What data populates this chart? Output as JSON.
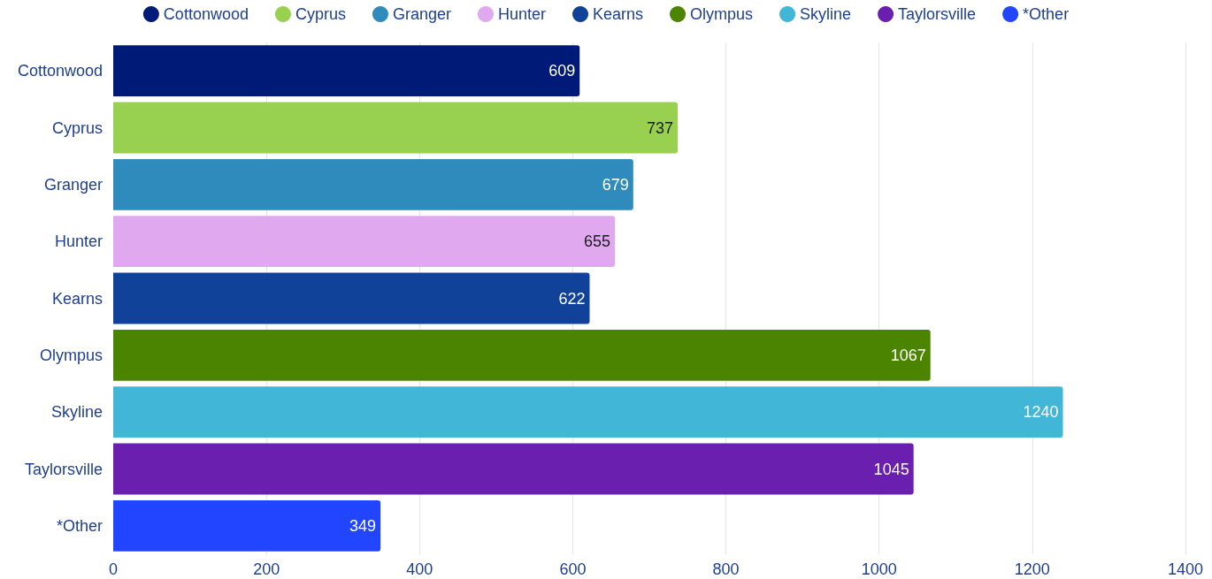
{
  "chart_data": {
    "type": "bar",
    "orientation": "horizontal",
    "categories": [
      "Cottonwood",
      "Cyprus",
      "Granger",
      "Hunter",
      "Kearns",
      "Olympus",
      "Skyline",
      "Taylorsville",
      "*Other"
    ],
    "series": [
      {
        "name": "Cottonwood",
        "color": "#001a78",
        "values": [
          609,
          null,
          null,
          null,
          null,
          null,
          null,
          null,
          null
        ]
      },
      {
        "name": "Cyprus",
        "color": "#97d14f",
        "values": [
          null,
          737,
          null,
          null,
          null,
          null,
          null,
          null,
          null
        ]
      },
      {
        "name": "Granger",
        "color": "#2e8bbb",
        "values": [
          null,
          null,
          679,
          null,
          null,
          null,
          null,
          null,
          null
        ]
      },
      {
        "name": "Hunter",
        "color": "#e0a9ef",
        "values": [
          null,
          null,
          null,
          655,
          null,
          null,
          null,
          null,
          null
        ]
      },
      {
        "name": "Kearns",
        "color": "#10429a",
        "values": [
          null,
          null,
          null,
          null,
          622,
          null,
          null,
          null,
          null
        ]
      },
      {
        "name": "Olympus",
        "color": "#4b8500",
        "values": [
          null,
          null,
          null,
          null,
          null,
          1067,
          null,
          null,
          null
        ]
      },
      {
        "name": "Skyline",
        "color": "#41b6d6",
        "values": [
          null,
          null,
          null,
          null,
          null,
          null,
          1240,
          null,
          null
        ]
      },
      {
        "name": "Taylorsville",
        "color": "#6a1fae",
        "values": [
          null,
          null,
          null,
          null,
          null,
          null,
          null,
          1045,
          null
        ]
      },
      {
        "name": "*Other",
        "color": "#2246ff",
        "values": [
          null,
          null,
          null,
          null,
          null,
          null,
          null,
          null,
          349
        ]
      }
    ],
    "xlim": [
      0,
      1400
    ],
    "xticks": [
      0,
      200,
      400,
      600,
      800,
      1000,
      1200,
      1400
    ],
    "grid": "x",
    "legend": "top",
    "data_labels": true
  }
}
